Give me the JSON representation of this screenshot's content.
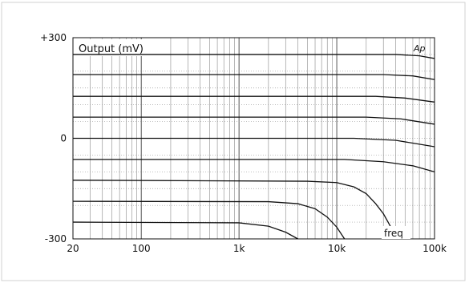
{
  "chart_data": {
    "type": "line",
    "title": "Output (mV)",
    "watermark": "Ap",
    "x_axis_corner_label": "freq",
    "x_scale": "log",
    "xlim": [
      20,
      100000
    ],
    "ylim": [
      -300,
      300
    ],
    "y_ticks": [
      {
        "value": 300,
        "label": "+300"
      },
      {
        "value": 0,
        "label": "0"
      },
      {
        "value": -300,
        "label": "-300"
      }
    ],
    "x_ticks": [
      {
        "value": 20,
        "label": "20"
      },
      {
        "value": 100,
        "label": "100"
      },
      {
        "value": 1000,
        "label": "1k"
      },
      {
        "value": 10000,
        "label": "10k"
      },
      {
        "value": 100000,
        "label": "100k"
      }
    ],
    "grid": true,
    "series": [
      {
        "points": [
          [
            20,
            250
          ],
          [
            40000,
            250
          ],
          [
            70000,
            246
          ],
          [
            100000,
            238
          ]
        ]
      },
      {
        "points": [
          [
            20,
            190
          ],
          [
            30000,
            190
          ],
          [
            60000,
            186
          ],
          [
            100000,
            175
          ]
        ]
      },
      {
        "points": [
          [
            20,
            125
          ],
          [
            25000,
            125
          ],
          [
            50000,
            120
          ],
          [
            100000,
            108
          ]
        ]
      },
      {
        "points": [
          [
            20,
            63
          ],
          [
            20000,
            63
          ],
          [
            45000,
            58
          ],
          [
            100000,
            42
          ]
        ]
      },
      {
        "points": [
          [
            20,
            0
          ],
          [
            15000,
            0
          ],
          [
            40000,
            -6
          ],
          [
            100000,
            -25
          ]
        ]
      },
      {
        "points": [
          [
            20,
            -63
          ],
          [
            12000,
            -63
          ],
          [
            30000,
            -70
          ],
          [
            60000,
            -82
          ],
          [
            100000,
            -100
          ]
        ]
      },
      {
        "points": [
          [
            20,
            -125
          ],
          [
            5000,
            -128
          ],
          [
            10000,
            -132
          ],
          [
            15000,
            -145
          ],
          [
            20000,
            -165
          ],
          [
            25000,
            -195
          ],
          [
            30000,
            -225
          ],
          [
            35000,
            -260
          ],
          [
            40000,
            -300
          ]
        ]
      },
      {
        "points": [
          [
            20,
            -188
          ],
          [
            2000,
            -189
          ],
          [
            4000,
            -195
          ],
          [
            6000,
            -210
          ],
          [
            8000,
            -235
          ],
          [
            10000,
            -265
          ],
          [
            12000,
            -300
          ]
        ]
      },
      {
        "points": [
          [
            20,
            -250
          ],
          [
            1000,
            -252
          ],
          [
            2000,
            -262
          ],
          [
            3000,
            -280
          ],
          [
            4000,
            -300
          ]
        ]
      }
    ]
  }
}
